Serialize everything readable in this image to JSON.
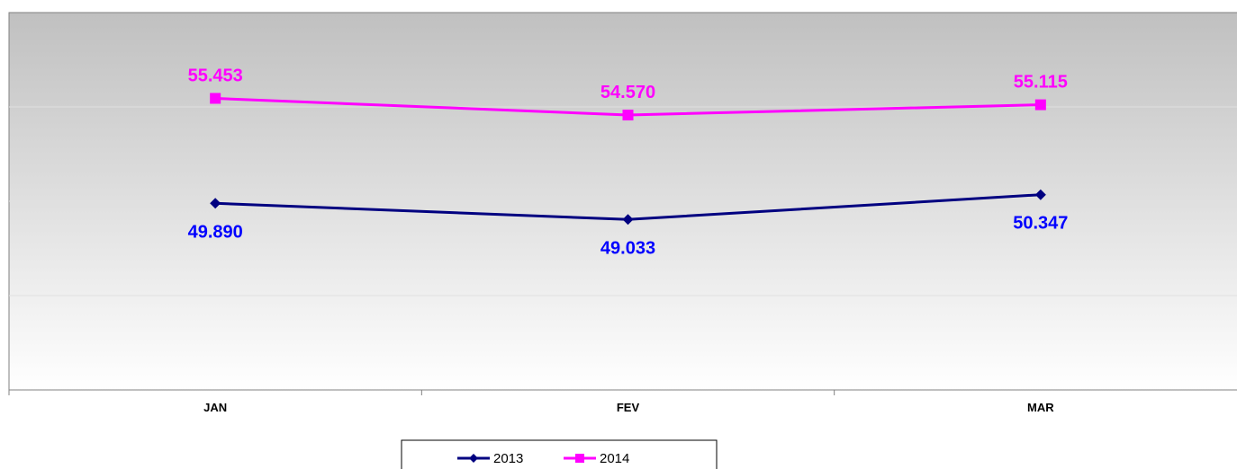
{
  "chart_data": {
    "type": "line",
    "categories": [
      "JAN",
      "FEV",
      "MAR"
    ],
    "series": [
      {
        "name": "2013",
        "values": [
          49890,
          49033,
          50347
        ],
        "labels": [
          "49.890",
          "49.033",
          "50.347"
        ],
        "color": "#000080",
        "label_color": "#0000ff",
        "marker": "diamond",
        "label_position": "below"
      },
      {
        "name": "2014",
        "values": [
          55453,
          54570,
          55115
        ],
        "labels": [
          "55.453",
          "54.570",
          "55.115"
        ],
        "color": "#ff00ff",
        "label_color": "#ff00ff",
        "marker": "square",
        "label_position": "above"
      }
    ],
    "ylim": [
      40000,
      60000
    ],
    "gridlines": [
      45000,
      50000,
      55000
    ],
    "grid": true,
    "legend_position": "bottom",
    "plot_background": {
      "top": "#c0c0c0",
      "bottom": "#ffffff"
    }
  }
}
